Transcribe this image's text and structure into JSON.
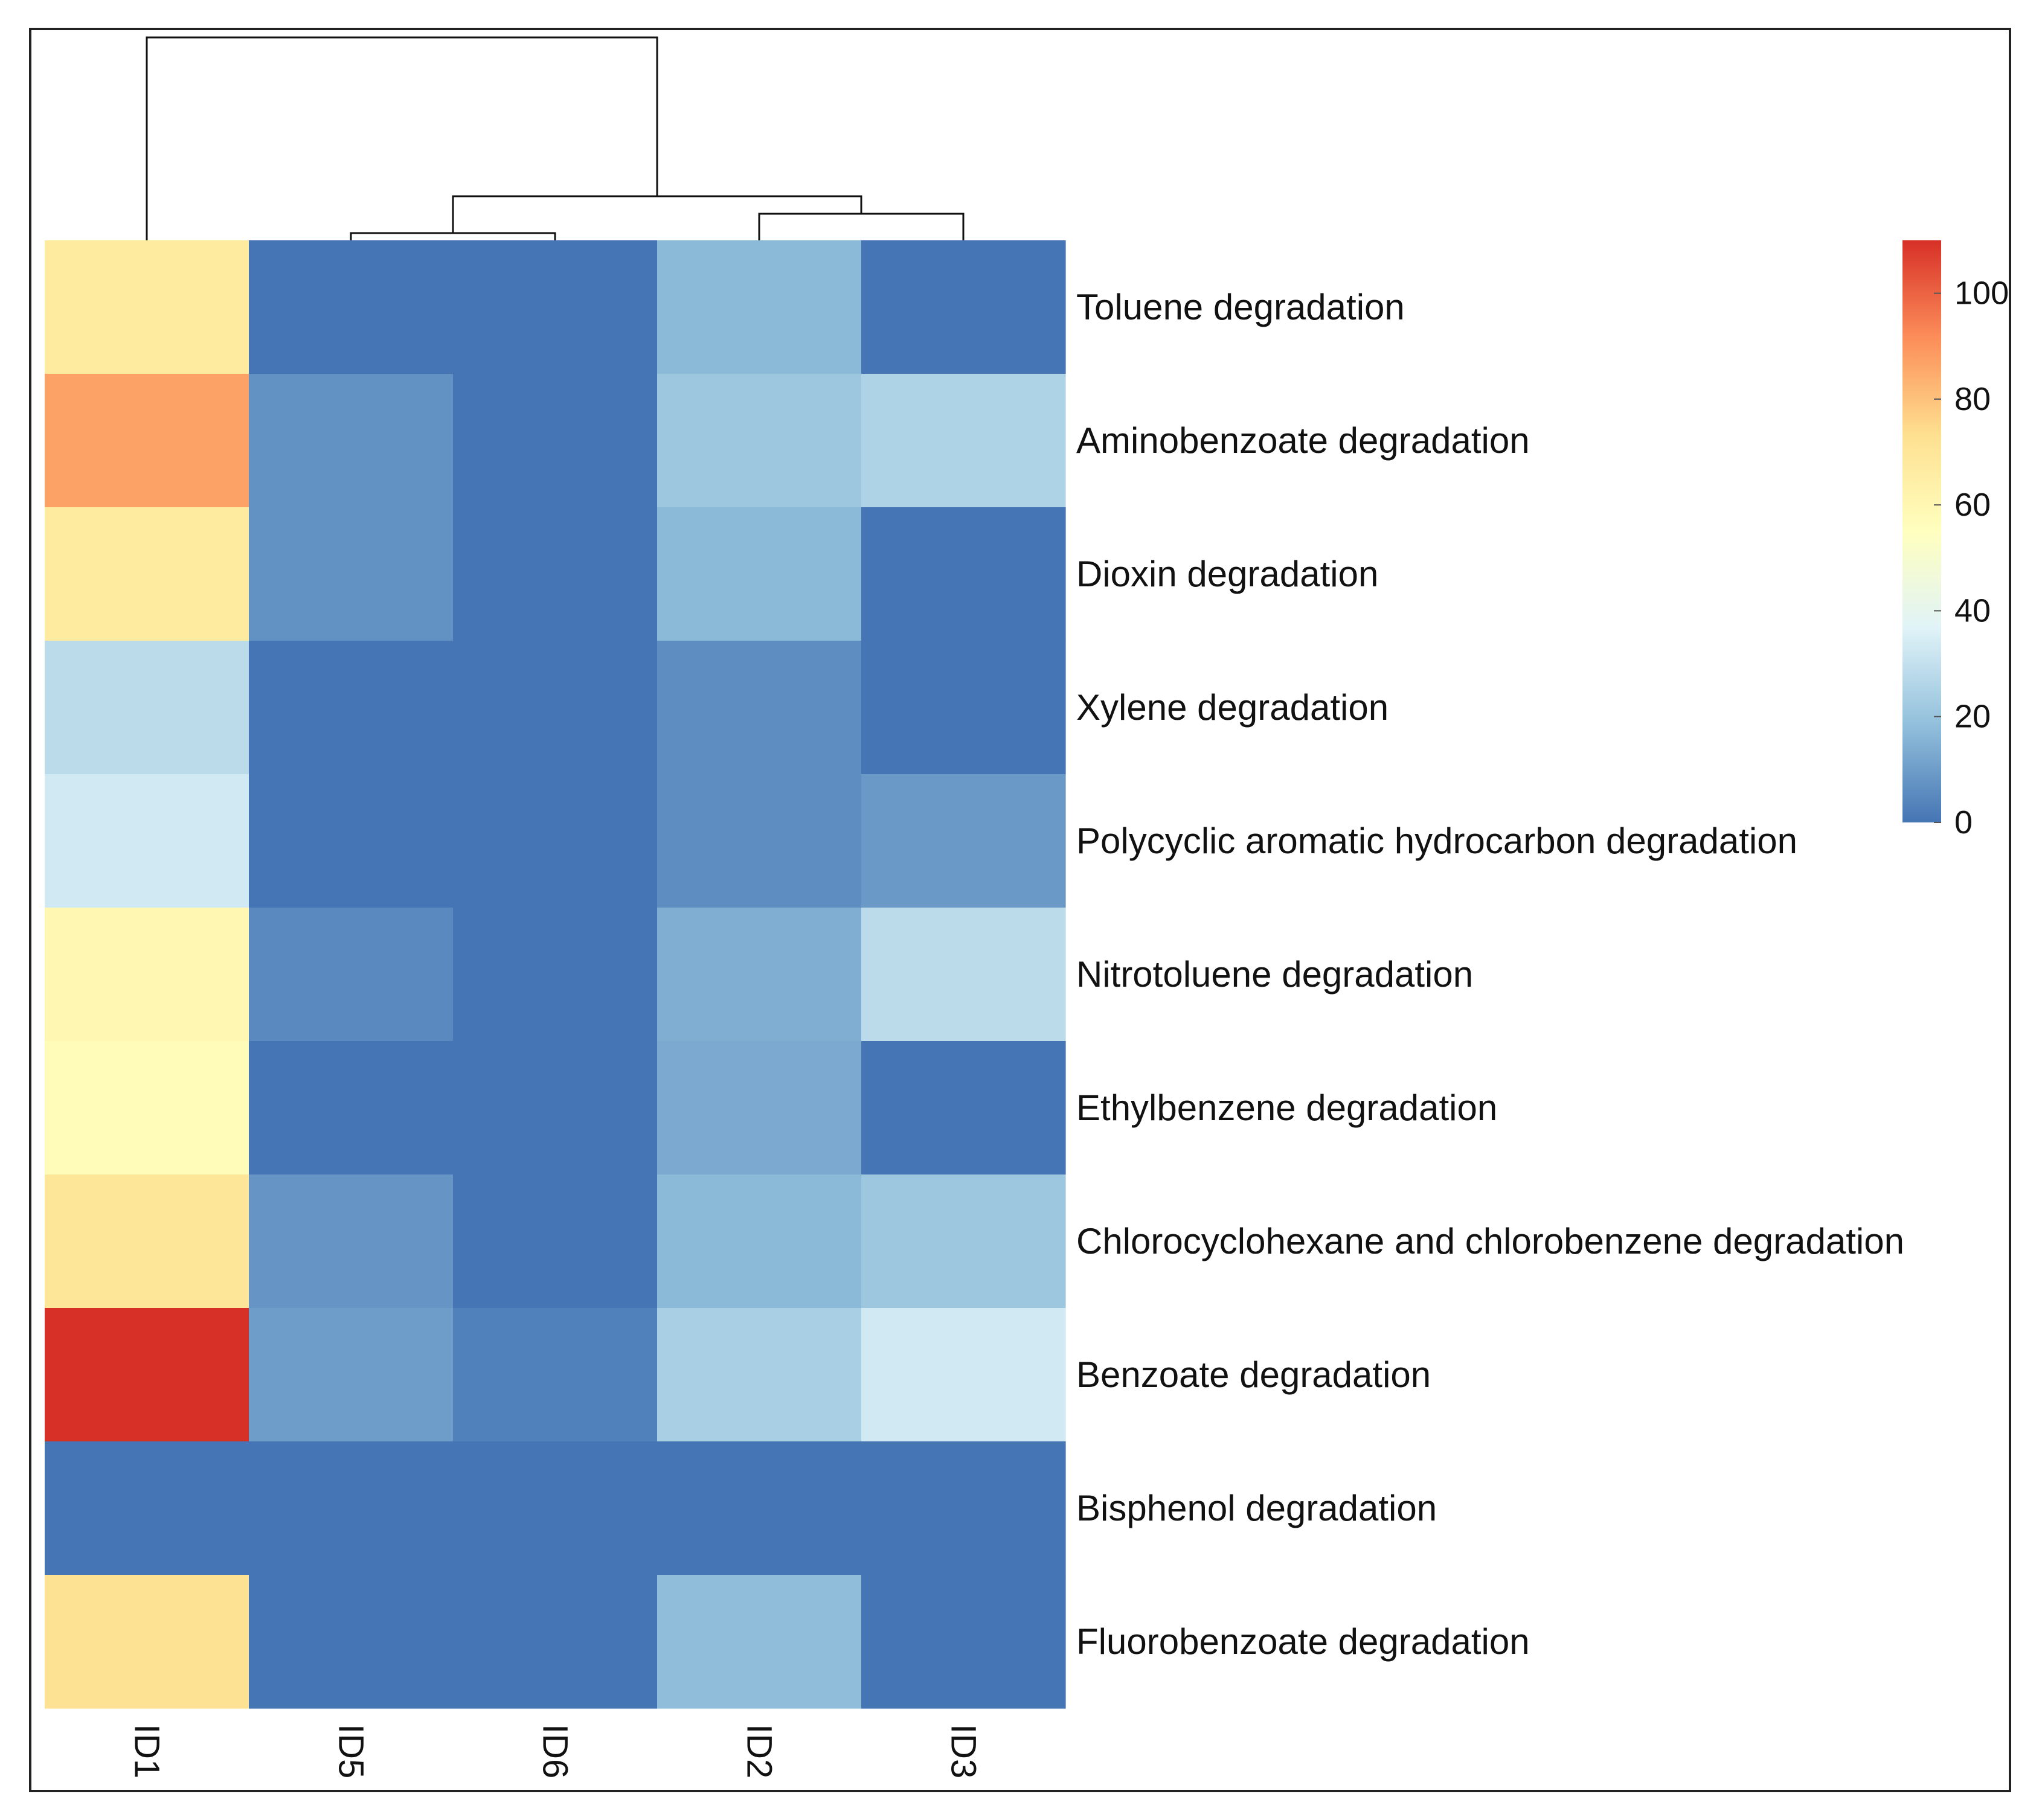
{
  "chart_data": {
    "type": "heatmap",
    "title": "",
    "xlabel": "",
    "ylabel": "",
    "columns": [
      "ID1",
      "ID5",
      "ID6",
      "ID2",
      "ID3"
    ],
    "rows": [
      "Toluene degradation",
      "Aminobenzoate degradation",
      "Dioxin degradation",
      "Xylene degradation",
      "Polycyclic aromatic hydrocarbon degradation",
      "Nitrotoluene degradation",
      "Ethylbenzene degradation",
      "Chlorocyclohexane and chlorobenzene degradation",
      "Benzoate degradation",
      "Bisphenol degradation",
      "Fluorobenzoate degradation"
    ],
    "values": [
      [
        67,
        0,
        0,
        17,
        0
      ],
      [
        87,
        7,
        0,
        21,
        25
      ],
      [
        67,
        7,
        0,
        17,
        0
      ],
      [
        28,
        0,
        0,
        6,
        0
      ],
      [
        33,
        0,
        0,
        6,
        9
      ],
      [
        60,
        5,
        0,
        14,
        28
      ],
      [
        57,
        0,
        0,
        13,
        0
      ],
      [
        70,
        8,
        0,
        17,
        21
      ],
      [
        110,
        10,
        3,
        24,
        33
      ],
      [
        0,
        0,
        0,
        0,
        0
      ],
      [
        72,
        0,
        0,
        18,
        0
      ]
    ],
    "color_scale": {
      "min": 0,
      "max": 110,
      "ticks": [
        "0",
        "20",
        "40",
        "60",
        "80",
        "100"
      ],
      "tick_values": [
        0,
        20,
        40,
        60,
        80,
        100
      ],
      "colors": [
        "#4575b4",
        "#91bfdb",
        "#e0f3f8",
        "#ffffbf",
        "#fee090",
        "#fc8d59",
        "#d73027"
      ]
    },
    "column_dendrogram": true,
    "row_dendrogram": false,
    "legend_position": "right"
  }
}
